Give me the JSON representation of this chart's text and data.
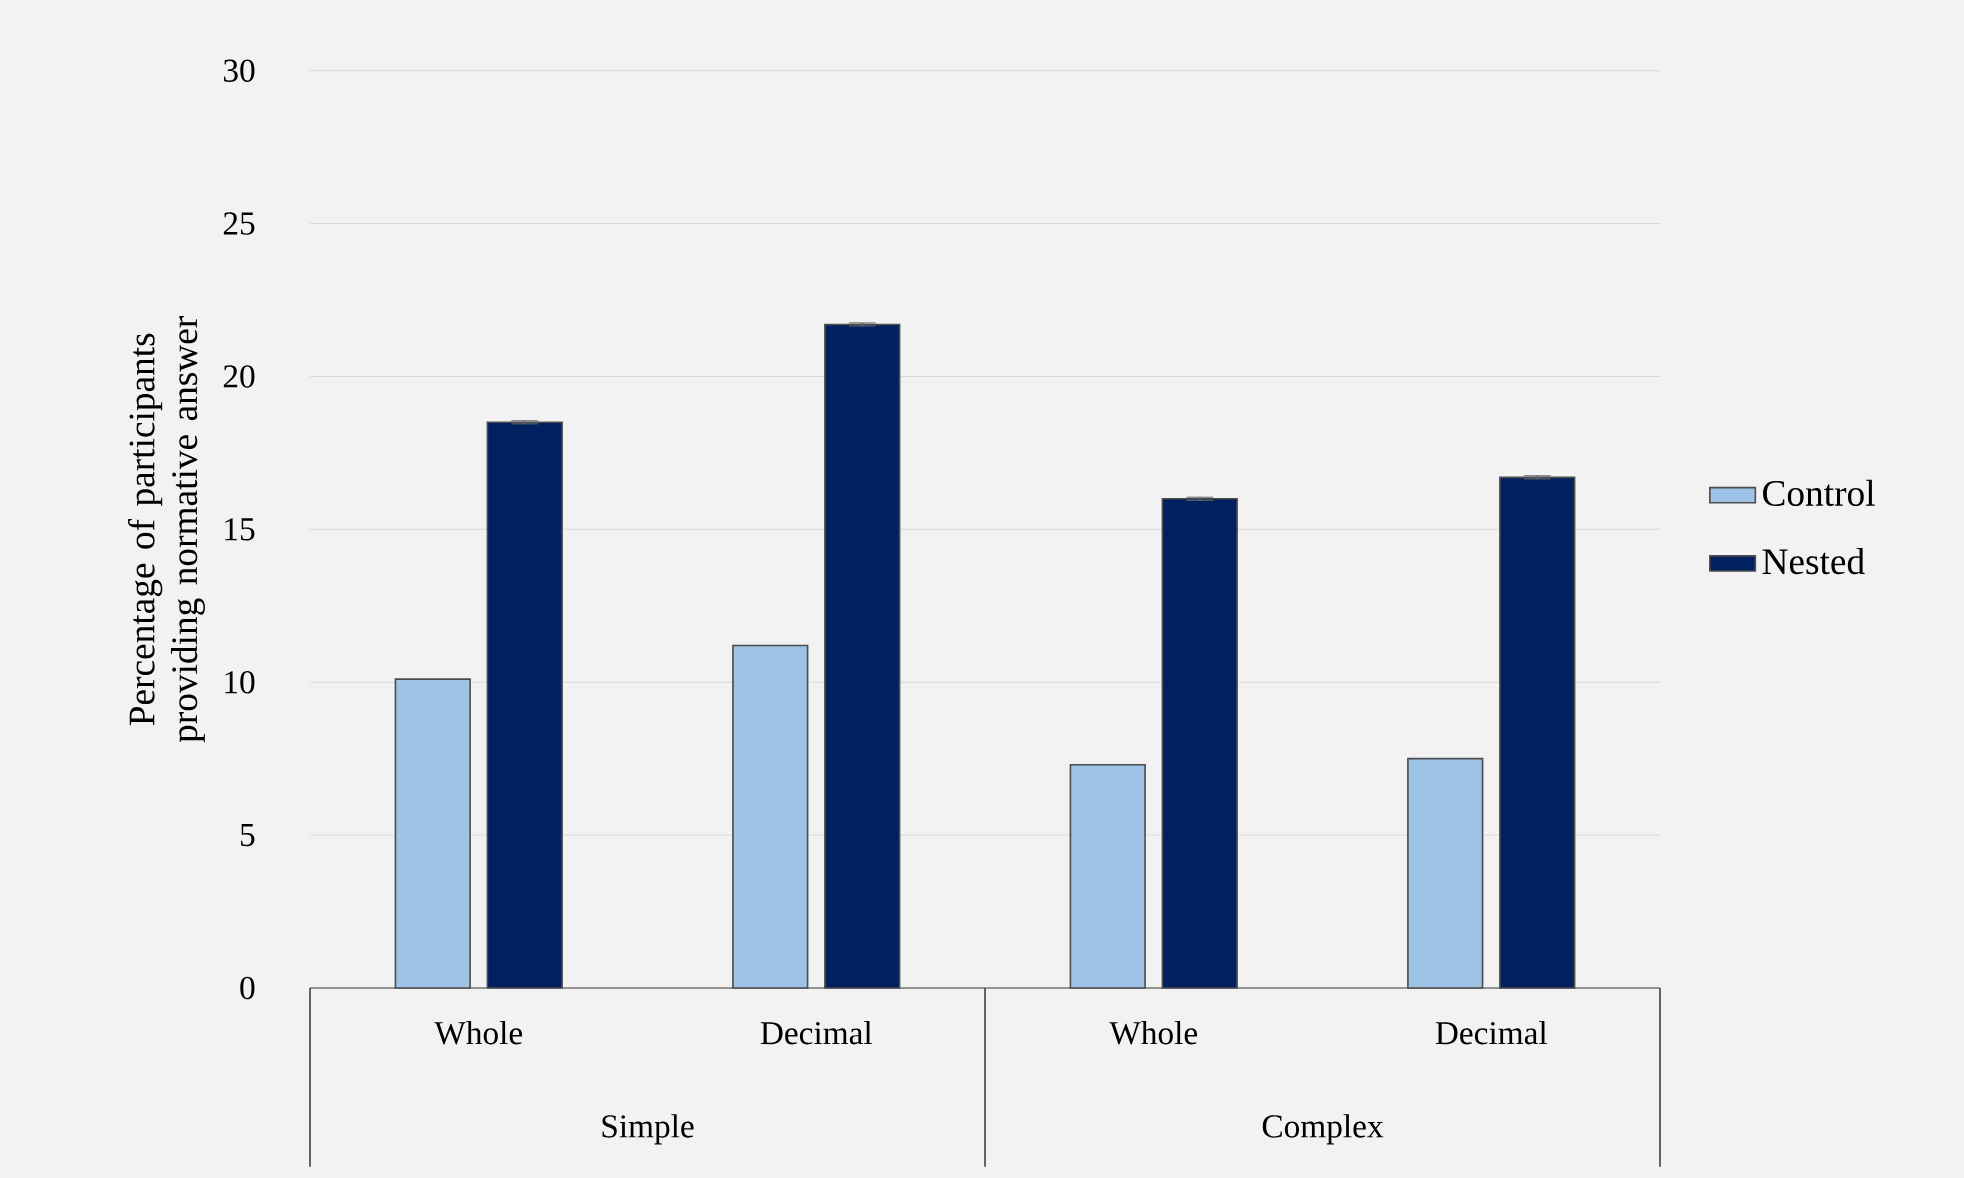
{
  "chart_data": {
    "type": "bar",
    "ylabel": "Percentage of participants providing normative answer",
    "categories": [
      "Whole",
      "Decimal",
      "Whole",
      "Decimal"
    ],
    "annotations": [
      "Simple",
      "Complex"
    ],
    "series": [
      {
        "name": "Control",
        "color": "#9dc3e6",
        "values": [
          10.1,
          11.2,
          7.3,
          7.5
        ]
      },
      {
        "name": "Nested",
        "color": "#002060",
        "values": [
          18.5,
          21.7,
          16.0,
          16.7
        ],
        "errors": [
          0.05,
          0.05,
          0.05,
          0.05
        ]
      }
    ],
    "ylim": [
      0,
      30
    ],
    "yticks": [
      0,
      5,
      10,
      15,
      20,
      25,
      30
    ],
    "grid": "y",
    "legend": "right"
  }
}
